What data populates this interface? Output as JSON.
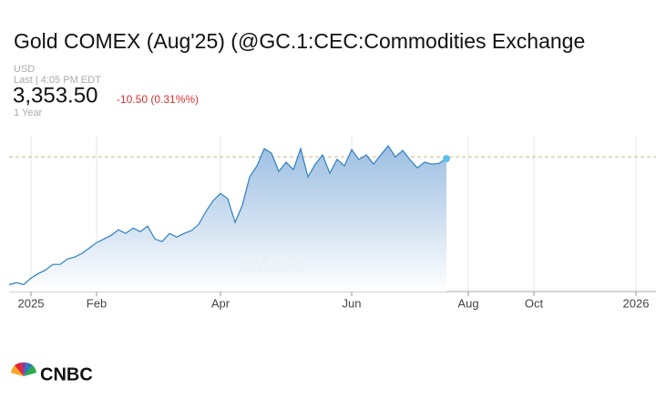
{
  "chart_data": {
    "type": "line",
    "title": "Gold COMEX (Aug'25) (@GC.1:CEC:Commodities Exchange",
    "currency": "USD",
    "last_label": "Last | 4:05 PM EDT",
    "price": "3,353.50",
    "change": "-10.50 (0.31%%)",
    "range_label": "1 Year",
    "logo_text": "CNBC",
    "categories": [
      null,
      null,
      null,
      "2025",
      null,
      null,
      null,
      null,
      null,
      null,
      null,
      null,
      "Feb",
      null,
      null,
      null,
      null,
      null,
      null,
      null,
      null,
      null,
      null,
      null,
      null,
      null,
      null,
      null,
      null,
      "Apr",
      null,
      null,
      null,
      null,
      null,
      null,
      null,
      null,
      null,
      null,
      null,
      null,
      null,
      null,
      null,
      null,
      null,
      "Jun",
      null,
      null,
      null,
      null,
      null,
      null,
      null,
      null,
      null,
      null,
      null,
      null,
      null,
      null,
      null,
      "Aug",
      null,
      null,
      null,
      null,
      null,
      null,
      null,
      null,
      "Oct",
      null,
      null,
      null,
      null,
      null,
      null,
      null,
      null,
      null,
      null,
      null,
      null,
      null,
      "2026",
      null,
      null
    ],
    "series": [
      {
        "name": "Gold COMEX",
        "color": "#2f7fc1",
        "values": [
          2630,
          2641,
          2630,
          2667,
          2693,
          2714,
          2746,
          2746,
          2777,
          2788,
          2809,
          2840,
          2871,
          2892,
          2913,
          2945,
          2924,
          2955,
          2934,
          2966,
          2892,
          2877,
          2924,
          2903,
          2924,
          2940,
          2976,
          3050,
          3113,
          3154,
          3123,
          2987,
          3086,
          3249,
          3312,
          3411,
          3385,
          3280,
          3333,
          3291,
          3411,
          3249,
          3322,
          3375,
          3270,
          3350,
          3312,
          3406,
          3348,
          3375,
          3322,
          3375,
          3427,
          3364,
          3401,
          3348,
          3301,
          3333,
          3322,
          3327,
          3353.5,
          null,
          null,
          null,
          null,
          null,
          null,
          null,
          null,
          null,
          null,
          null,
          null,
          null,
          null,
          null,
          null,
          null,
          null,
          null,
          null,
          null,
          null,
          null,
          null,
          null,
          null,
          null,
          null
        ]
      }
    ],
    "reference_line": 3364,
    "reference_color": "#c8b98a",
    "ylim": [
      2590,
      3480
    ],
    "grid": true
  }
}
